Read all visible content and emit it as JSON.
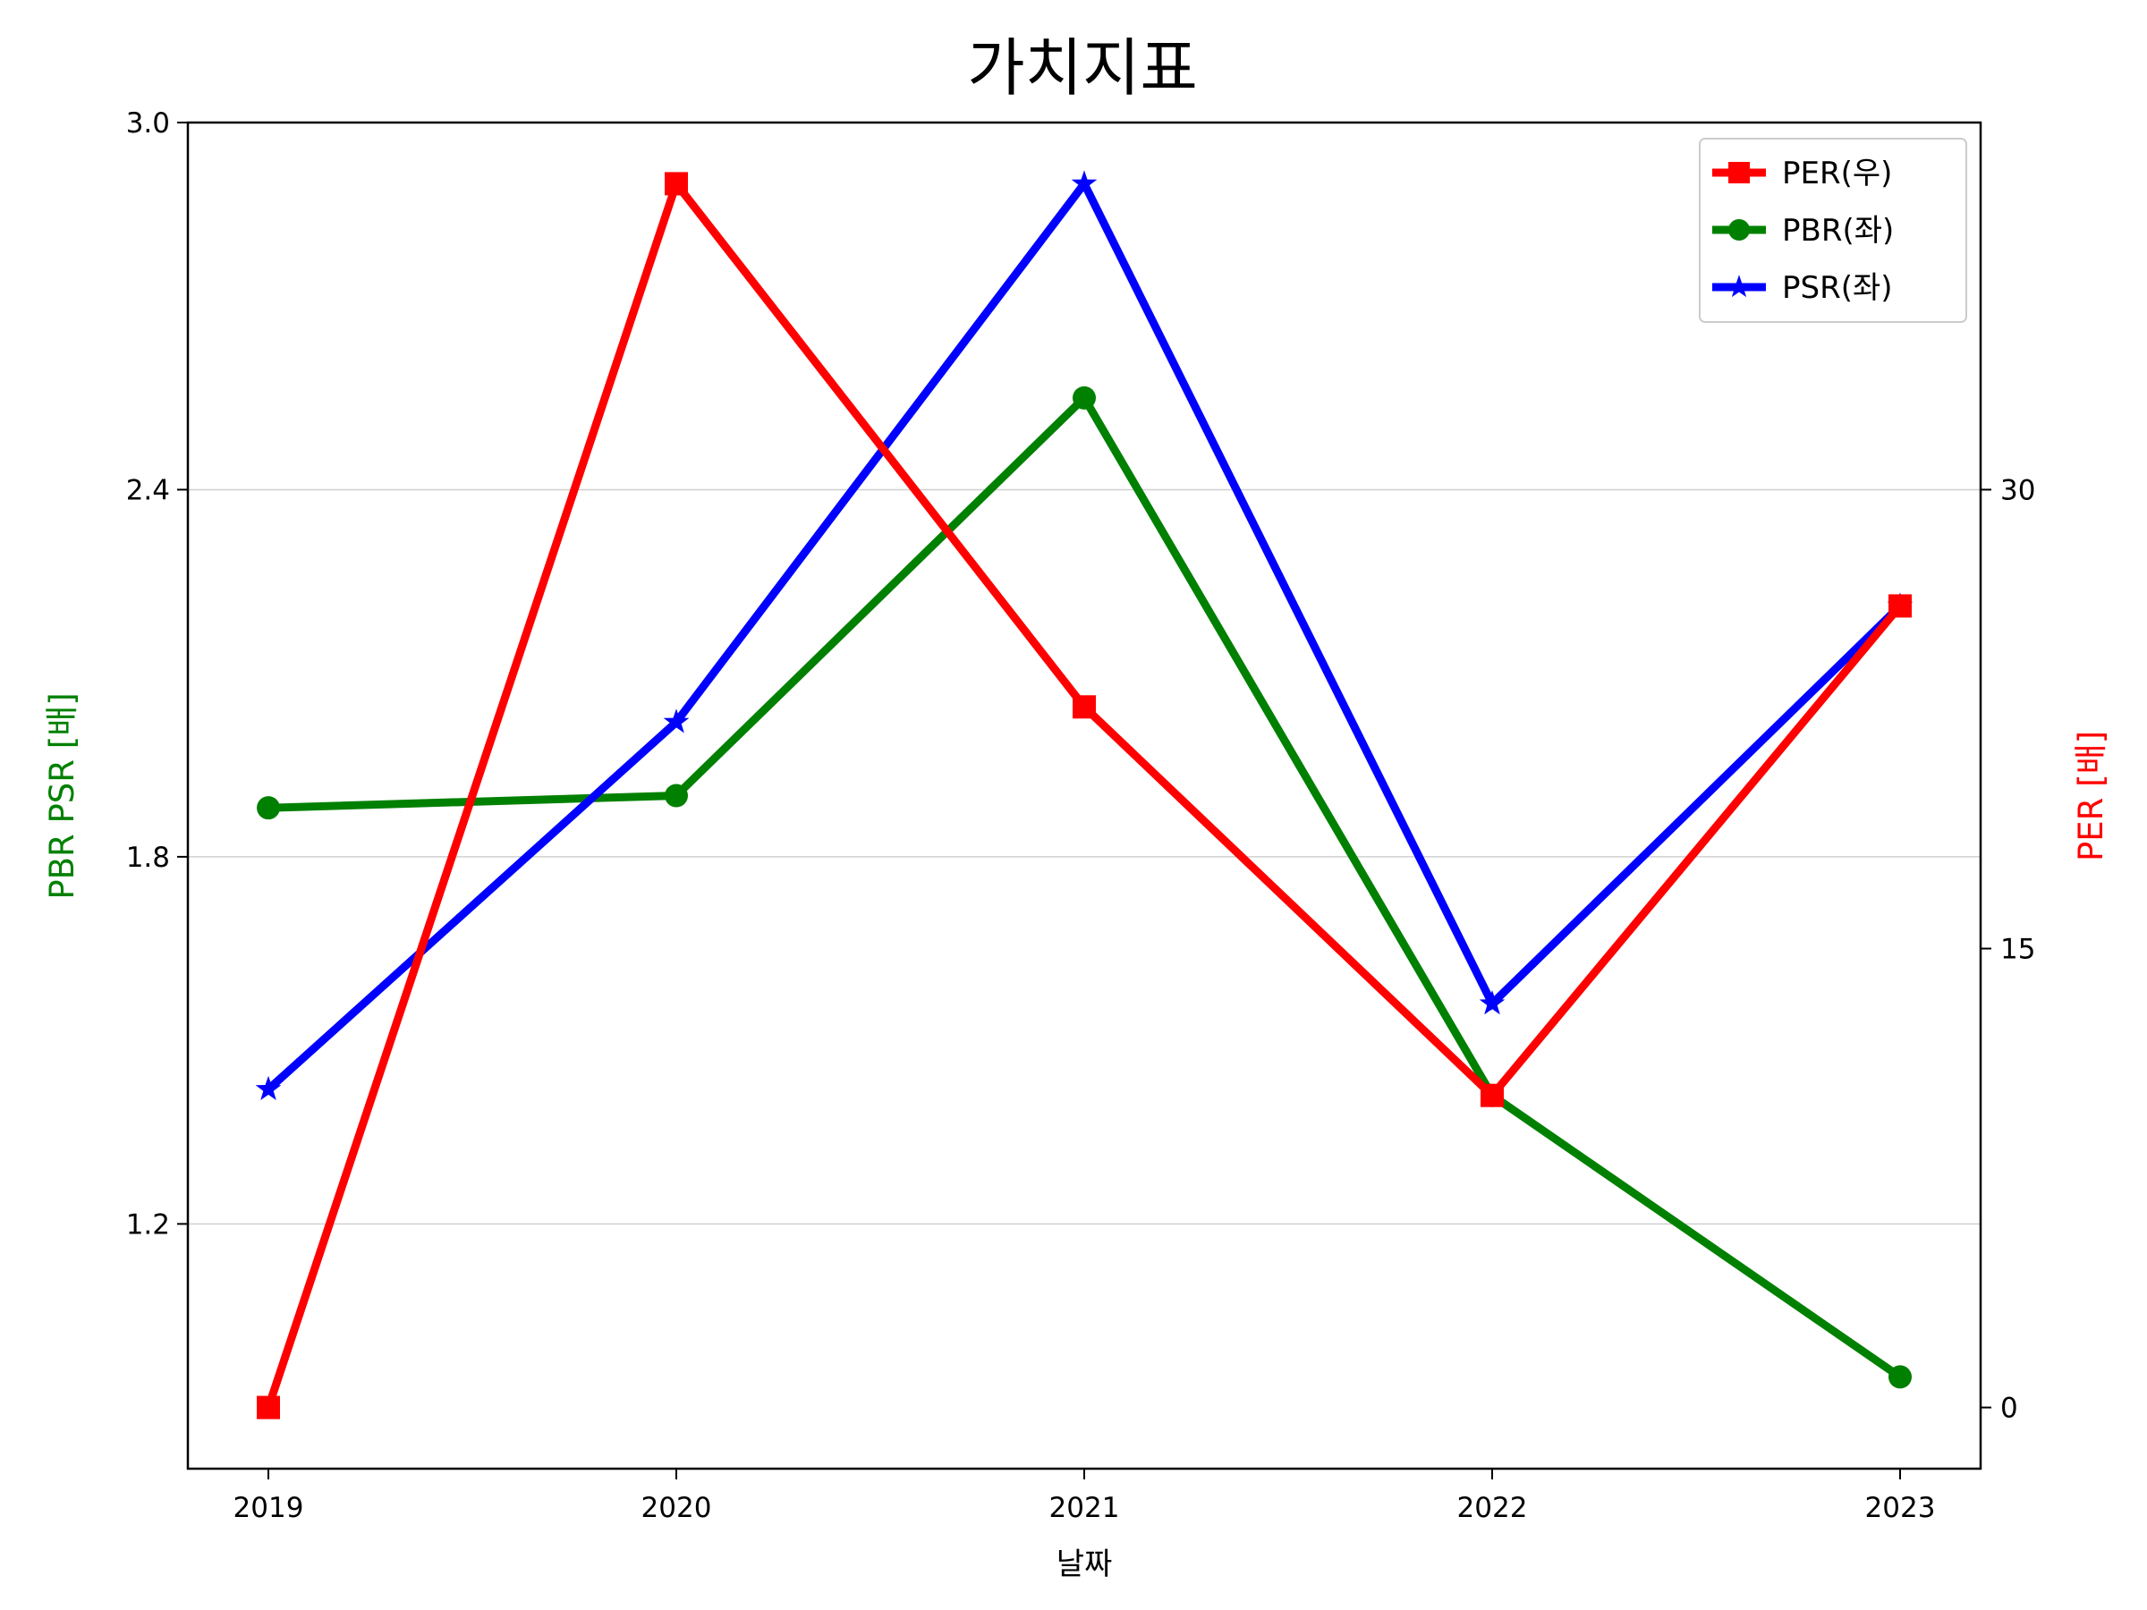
{
  "chart_data": {
    "type": "line",
    "title": "가치지표",
    "xlabel": "날짜",
    "ylabel_left": "PBR PSR [배]",
    "ylabel_right": "PER [배]",
    "ylabel_left_color": "#008000",
    "ylabel_right_color": "#ff0000",
    "categories": [
      "2019",
      "2020",
      "2021",
      "2022",
      "2023"
    ],
    "ylim_left": [
      0.8,
      3.0
    ],
    "ylim_right": [
      -2,
      42
    ],
    "yticks_left": [
      "1.2",
      "1.8",
      "2.4",
      "3.0"
    ],
    "yticks_right": [
      "0",
      "15",
      "30"
    ],
    "grid": "horizontal (left axis)",
    "legend_position": "top-right",
    "series": [
      {
        "name": "PER(우)",
        "axis": "right",
        "color": "#ff0000",
        "marker": "square",
        "values": [
          0,
          40.0,
          22.9,
          10.2,
          26.2
        ]
      },
      {
        "name": "PBR(좌)",
        "axis": "left",
        "color": "#008000",
        "marker": "circle",
        "values": [
          1.88,
          1.9,
          2.55,
          1.41,
          0.95
        ]
      },
      {
        "name": "PSR(좌)",
        "axis": "left",
        "color": "#0000ff",
        "marker": "star",
        "values": [
          1.42,
          2.02,
          2.9,
          1.56,
          2.21
        ]
      }
    ]
  }
}
